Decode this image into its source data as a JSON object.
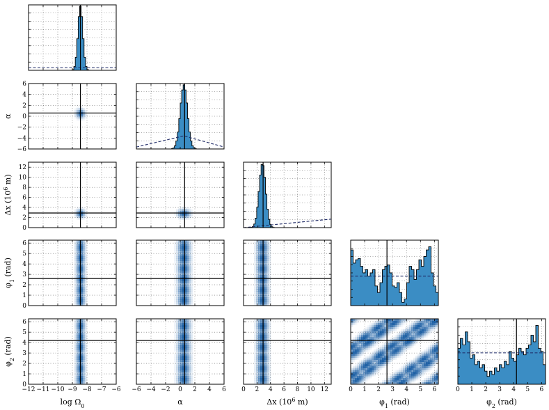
{
  "chart_data": {
    "type": "corner",
    "variables": [
      {
        "key": "logOmega0",
        "label_main": "log Ω",
        "label_sub": "0",
        "label_rest": "",
        "range": [
          -12,
          -6
        ],
        "ticks": [
          -12,
          -11,
          -10,
          -9,
          -8,
          -7,
          -6
        ],
        "truth": -8.45
      },
      {
        "key": "alpha",
        "label_main": "α",
        "label_sub": "",
        "label_rest": "",
        "range": [
          -6,
          6
        ],
        "ticks": [
          -6,
          -4,
          -2,
          0,
          2,
          4,
          6
        ],
        "truth": 0.6
      },
      {
        "key": "dx",
        "label_main": "Δx (10",
        "label_sup": "6",
        "label_rest": " m)",
        "range": [
          0,
          13
        ],
        "ticks": [
          0,
          2,
          4,
          6,
          8,
          10,
          12
        ],
        "truth": 2.9
      },
      {
        "key": "phi1",
        "label_main": "φ",
        "label_sub": "1",
        "label_rest": " (rad)",
        "range": [
          0,
          6.283
        ],
        "ticks": [
          0,
          1,
          2,
          3,
          4,
          5,
          6
        ],
        "truth": 2.6
      },
      {
        "key": "phi2",
        "label_main": "φ",
        "label_sub": "2",
        "label_rest": " (rad)",
        "range": [
          0,
          6.283
        ],
        "ticks": [
          0,
          1,
          2,
          3,
          4,
          5,
          6
        ],
        "truth": 4.2
      }
    ],
    "diagonal_histograms": [
      {
        "var": "logOmega0",
        "peak_center": -8.45,
        "peak_width": 0.12,
        "prior": "flat",
        "prior_level": 0.04
      },
      {
        "var": "alpha",
        "peak_center": 0.5,
        "peak_width": 0.35,
        "prior": "triangle",
        "prior_peak": 0.5,
        "prior_peak_level": 0.2,
        "prior_edge_level": 0.03
      },
      {
        "var": "dx",
        "peak_center": 2.8,
        "peak_width": 0.35,
        "prior": "linear",
        "prior_start": 0.0,
        "prior_end": 0.13
      },
      {
        "var": "phi1",
        "prior": "flat",
        "prior_level": 0.45,
        "bin_heights": [
          0.85,
          0.65,
          0.7,
          0.72,
          0.6,
          0.5,
          0.55,
          0.45,
          0.5,
          0.55,
          0.3,
          0.2,
          0.35,
          0.55,
          0.6,
          0.62,
          0.5,
          0.3,
          0.28,
          0.35,
          0.2,
          0.05,
          0.1,
          0.35,
          0.6,
          0.55,
          0.4,
          0.55,
          0.7,
          0.6,
          0.75,
          0.85,
          0.9,
          0.5,
          0.3,
          0.2
        ]
      },
      {
        "var": "phi2",
        "prior": "flat",
        "prior_level": 0.48,
        "bin_heights": [
          0.55,
          0.7,
          0.6,
          0.8,
          0.65,
          0.4,
          0.45,
          0.3,
          0.35,
          0.25,
          0.3,
          0.2,
          0.12,
          0.2,
          0.15,
          0.25,
          0.2,
          0.3,
          0.25,
          0.35,
          0.3,
          0.5,
          0.4,
          0.35,
          0.45,
          0.55,
          0.5,
          0.45,
          0.55,
          0.6,
          0.75,
          0.65,
          0.9,
          0.55,
          0.5,
          0.3
        ]
      }
    ],
    "grid": true,
    "truth_lines": true,
    "colors": {
      "fill": "#3b8dc4",
      "edge": "#000000",
      "prior": "#1f2a66",
      "heat": "#08519c",
      "truth": "#000000"
    }
  }
}
